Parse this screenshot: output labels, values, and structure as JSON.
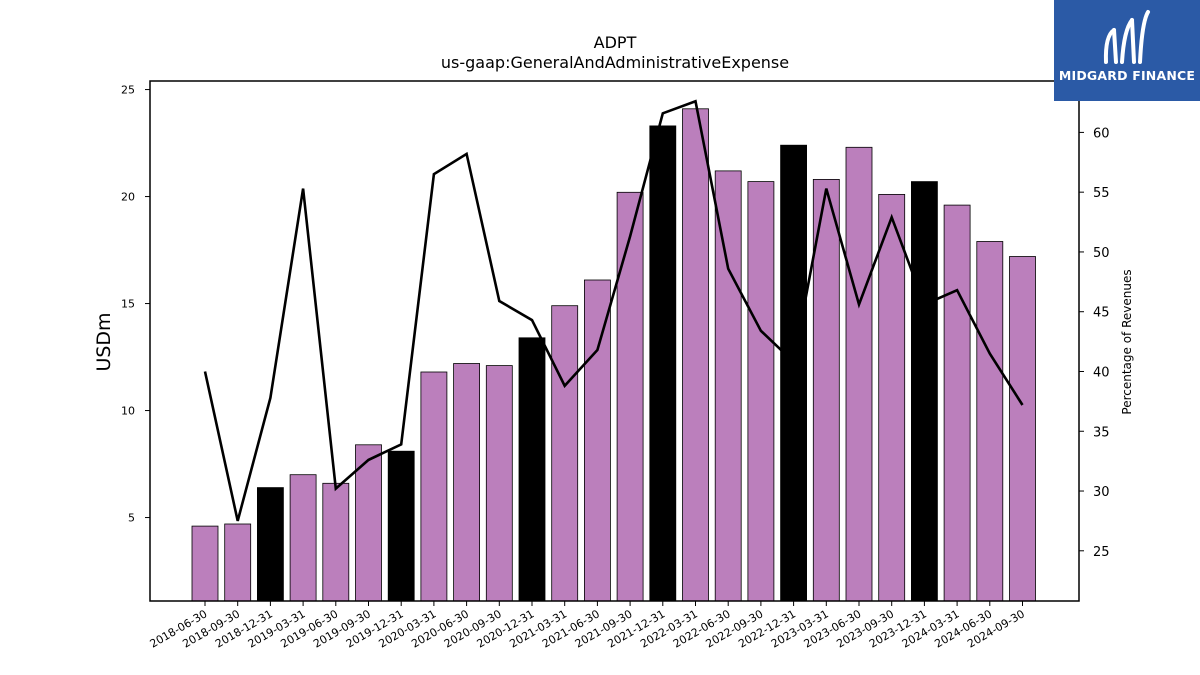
{
  "chart_data": {
    "type": "bar",
    "title": "ADPT",
    "subtitle": "us-gaap:GeneralAndAdministrativeExpense",
    "ylabel": "USDm",
    "y2label": "Percentage of Revenues",
    "ylim": [
      1.1,
      25.4
    ],
    "y2lim": [
      20.8,
      64.3
    ],
    "yticks": [
      5,
      10,
      15,
      20,
      25
    ],
    "y2ticks": [
      25,
      30,
      35,
      40,
      45,
      50,
      55,
      60
    ],
    "categories": [
      "2018-06-30",
      "2018-09-30",
      "2018-12-31",
      "2019-03-31",
      "2019-06-30",
      "2019-09-30",
      "2019-12-31",
      "2020-03-31",
      "2020-06-30",
      "2020-09-30",
      "2020-12-31",
      "2021-03-31",
      "2021-06-30",
      "2021-09-30",
      "2021-12-31",
      "2022-03-31",
      "2022-06-30",
      "2022-09-30",
      "2022-12-31",
      "2023-03-31",
      "2023-06-30",
      "2023-09-30",
      "2023-12-31",
      "2024-03-31",
      "2024-06-30",
      "2024-09-30"
    ],
    "series": [
      {
        "type": "bar",
        "values": [
          4.6,
          4.7,
          6.4,
          7.0,
          6.6,
          8.4,
          8.1,
          11.8,
          12.2,
          12.1,
          13.4,
          14.9,
          16.1,
          20.2,
          23.3,
          24.1,
          21.2,
          20.7,
          22.4,
          20.8,
          22.3,
          20.1,
          20.7,
          19.6,
          17.9,
          17.2
        ],
        "highlight": [
          false,
          false,
          true,
          false,
          false,
          false,
          true,
          false,
          false,
          false,
          true,
          false,
          false,
          false,
          true,
          false,
          false,
          false,
          true,
          false,
          false,
          false,
          true,
          false,
          false,
          false
        ]
      },
      {
        "type": "line",
        "axis": "right",
        "values": [
          40.0,
          27.5,
          37.8,
          55.3,
          30.2,
          32.6,
          33.9,
          56.5,
          58.2,
          45.9,
          44.3,
          38.8,
          41.8,
          51.3,
          61.6,
          62.6,
          48.6,
          43.4,
          40.8,
          55.3,
          45.6,
          52.9,
          45.6,
          46.8,
          41.5,
          37.2
        ]
      }
    ],
    "colors": {
      "bar": "#bb7fbc",
      "bar_highlight": "#000000",
      "line": "#000000"
    }
  },
  "logo": {
    "text": "MIDGARD FINANCE",
    "background": "#2b5aa6"
  }
}
